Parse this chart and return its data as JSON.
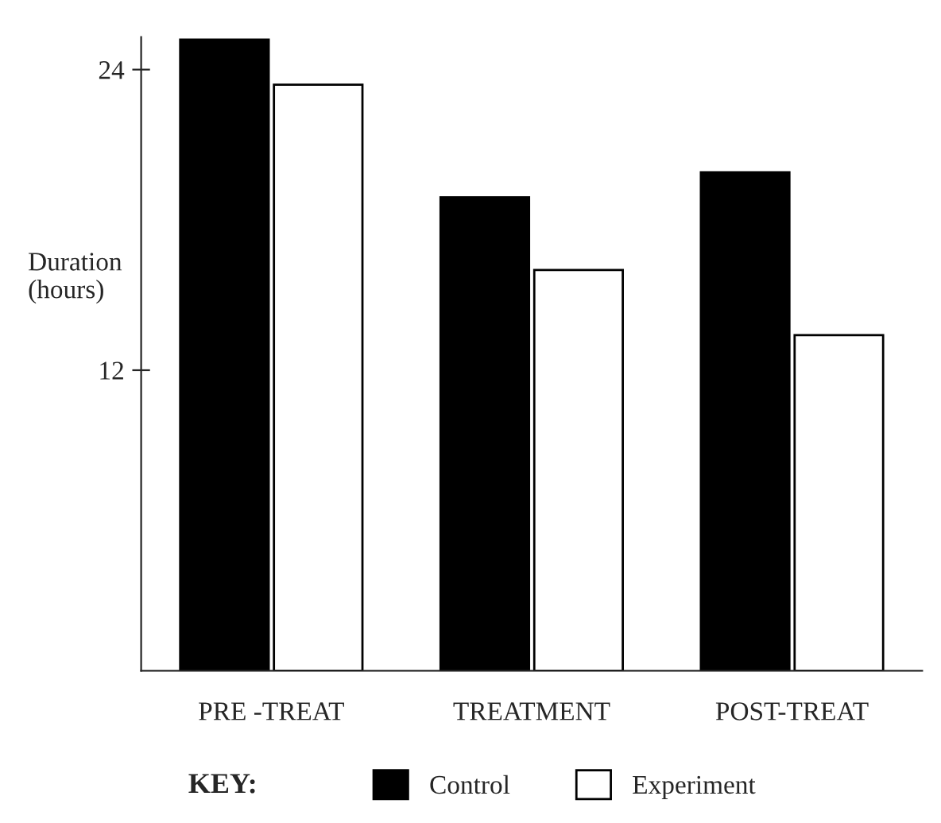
{
  "chart_data": {
    "type": "bar",
    "ylabel": "Duration\n(hours)",
    "legend_title": "KEY:",
    "categories": [
      "PRE -TREAT",
      "TREATMENT",
      "POST-TREAT"
    ],
    "series": [
      {
        "name": "Control",
        "color": "#000000",
        "values": [
          25.2,
          18.9,
          19.9
        ]
      },
      {
        "name": "Experiment",
        "color": "#ffffff",
        "values": [
          23.4,
          16.0,
          13.4
        ]
      }
    ],
    "ylim": [
      0,
      25.3
    ],
    "yticks": [
      12,
      24
    ],
    "grid": false,
    "legend": "bottom"
  }
}
